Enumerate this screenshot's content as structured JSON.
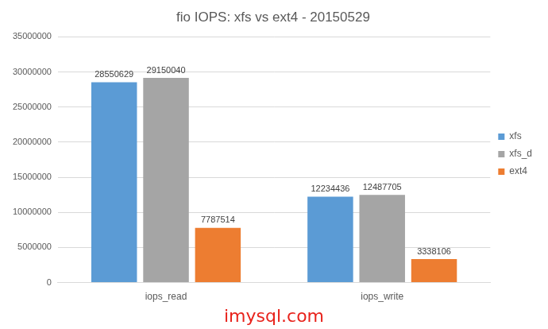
{
  "chart_data": {
    "type": "bar",
    "title": "fio IOPS: xfs vs ext4 - 20150529",
    "categories": [
      "iops_read",
      "iops_write"
    ],
    "series": [
      {
        "name": "xfs",
        "color": "#5b9bd5",
        "values": [
          28550629,
          12234436
        ]
      },
      {
        "name": "xfs_d",
        "color": "#a5a5a5",
        "values": [
          29150040,
          12487705
        ]
      },
      {
        "name": "ext4",
        "color": "#ed7d31",
        "values": [
          7787514,
          3338106
        ]
      }
    ],
    "ylim": [
      0,
      35000000
    ],
    "yticks": [
      0,
      5000000,
      10000000,
      15000000,
      20000000,
      25000000,
      30000000,
      35000000
    ],
    "grid": true,
    "legend": "right",
    "data_labels": true,
    "annotation": "imysql.com"
  }
}
